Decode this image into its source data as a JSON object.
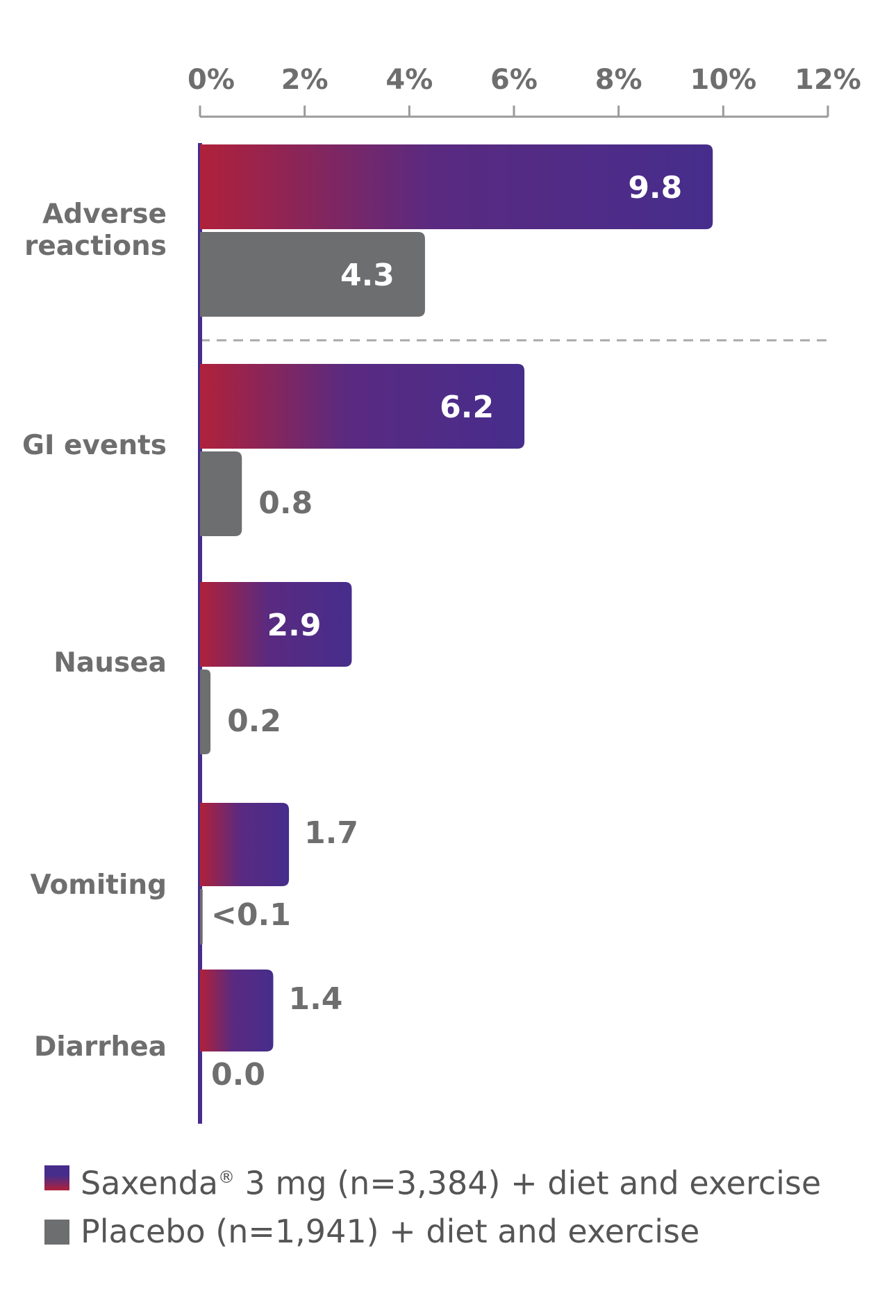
{
  "chart_data": {
    "type": "bar",
    "orientation": "horizontal",
    "x_ticks": [
      "0%",
      "2%",
      "4%",
      "6%",
      "8%",
      "10%",
      "12%"
    ],
    "xlim": [
      0,
      12
    ],
    "grid": false,
    "legend_position": "bottom",
    "categories": [
      "Adverse reactions",
      "GI events",
      "Nausea",
      "Vomiting",
      "Diarrhea"
    ],
    "category_lines": [
      [
        "Adverse",
        "reactions"
      ],
      [
        "GI events"
      ],
      [
        "Nausea"
      ],
      [
        "Vomiting"
      ],
      [
        "Diarrhea"
      ]
    ],
    "series": [
      {
        "name": "Saxenda® 3 mg (n=3,384) + diet and exercise",
        "values": [
          9.8,
          6.2,
          2.9,
          1.7,
          1.4
        ],
        "labels": [
          "9.8",
          "6.2",
          "2.9",
          "1.7",
          "1.4"
        ],
        "color_start": "#b0213a",
        "color_end": "#462d8c"
      },
      {
        "name": "Placebo (n=1,941) + diet and exercise",
        "values": [
          4.3,
          0.8,
          0.2,
          0.05,
          0.0
        ],
        "labels": [
          "4.3",
          "0.8",
          "0.2",
          "<0.1",
          "0.0"
        ],
        "color": "#6d6e70"
      }
    ],
    "separator_after_category": "Adverse reactions"
  },
  "legend": {
    "saxenda": {
      "prefix": "Saxenda",
      "sup": "®",
      "suffix": " 3 mg (n=3,384) + diet and exercise"
    },
    "placebo": {
      "text": "Placebo (n=1,941) + diet and exercise"
    }
  },
  "colors": {
    "axis": "#9a9a9a",
    "baseline": "#462d8c",
    "text": "#6e6e6e"
  }
}
